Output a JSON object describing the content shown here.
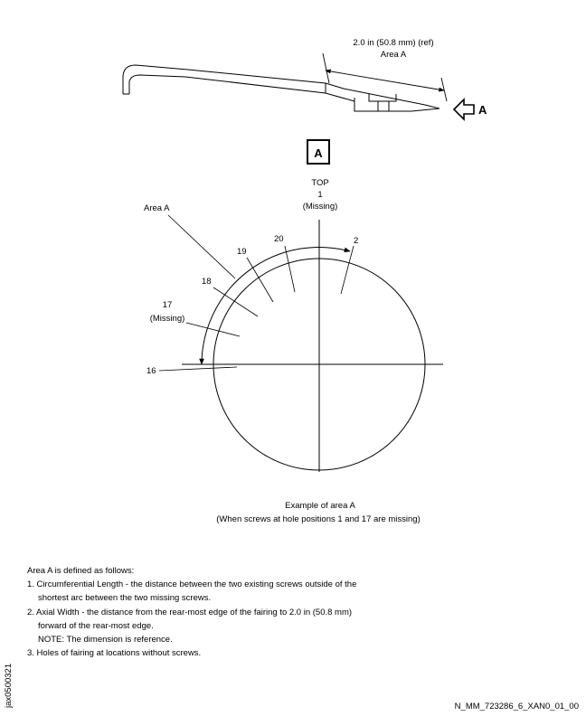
{
  "dimension": {
    "value": "2.0 in (50.8 mm) (ref)",
    "area_label": "Area A"
  },
  "view_arrow_label": "A",
  "view_box_label": "A",
  "top_label": {
    "text": "TOP",
    "hole_number": "1",
    "status": "(Missing)"
  },
  "area_a_callout": "Area A",
  "holes": [
    {
      "number": "2",
      "status": ""
    },
    {
      "number": "20",
      "status": ""
    },
    {
      "number": "19",
      "status": ""
    },
    {
      "number": "18",
      "status": ""
    },
    {
      "number": "17",
      "status": "(Missing)"
    },
    {
      "number": "16",
      "status": ""
    }
  ],
  "caption": {
    "line1": "Example of area A",
    "line2": "(When screws at hole positions 1 and 17 are missing)"
  },
  "notes": {
    "heading": "Area A is defined as follows:",
    "item1_a": "1. Circumferential Length - the distance between the two existing screws outside of the",
    "item1_b": "shortest arc between the two missing screws.",
    "item2_a": "2. Axial Width - the distance from the rear-most edge of the fairing to 2.0 in (50.8 mm)",
    "item2_b": "forward of the rear-most edge.",
    "item2_note": "NOTE: The dimension is reference.",
    "item3": "3. Holes of fairing at locations without screws."
  },
  "side_code": "jax0500321",
  "drawing_number": "N_MM_723286_6_XAN0_01_00"
}
